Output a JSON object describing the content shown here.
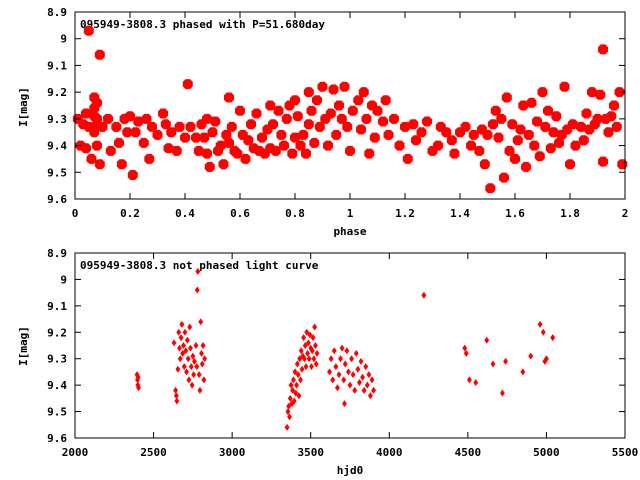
{
  "chart_data": [
    {
      "type": "scatter",
      "title": "095949-3808.3 phased with P=51.680day",
      "xlabel": "phase",
      "ylabel": "I[mag]",
      "xlim": [
        0,
        2
      ],
      "ylim": [
        8.9,
        9.6
      ],
      "y_inverted": true,
      "grid": false,
      "color": "#ff0000",
      "xticks": [
        "0",
        "0.2",
        "0.4",
        "0.6",
        "0.8",
        "1",
        "1.2",
        "1.4",
        "1.6",
        "1.8",
        "2"
      ],
      "yticks": [
        "8.9",
        "9",
        "9.1",
        "9.2",
        "9.3",
        "9.4",
        "9.5",
        "9.6"
      ],
      "points": [
        [
          0.01,
          9.3
        ],
        [
          0.02,
          9.4
        ],
        [
          0.03,
          9.32
        ],
        [
          0.04,
          9.28
        ],
        [
          0.04,
          9.41
        ],
        [
          0.05,
          8.97
        ],
        [
          0.05,
          9.33
        ],
        [
          0.06,
          9.45
        ],
        [
          0.07,
          9.22
        ],
        [
          0.07,
          9.26
        ],
        [
          0.07,
          9.29
        ],
        [
          0.07,
          9.33
        ],
        [
          0.07,
          9.35
        ],
        [
          0.08,
          9.24
        ],
        [
          0.08,
          9.3
        ],
        [
          0.08,
          9.4
        ],
        [
          0.09,
          9.06
        ],
        [
          0.09,
          9.47
        ],
        [
          0.1,
          9.33
        ],
        [
          0.12,
          9.3
        ],
        [
          0.13,
          9.42
        ],
        [
          0.15,
          9.33
        ],
        [
          0.16,
          9.39
        ],
        [
          0.17,
          9.47
        ],
        [
          0.18,
          9.3
        ],
        [
          0.19,
          9.35
        ],
        [
          0.2,
          9.29
        ],
        [
          0.21,
          9.51
        ],
        [
          0.22,
          9.35
        ],
        [
          0.23,
          9.31
        ],
        [
          0.25,
          9.39
        ],
        [
          0.26,
          9.3
        ],
        [
          0.27,
          9.45
        ],
        [
          0.28,
          9.33
        ],
        [
          0.3,
          9.36
        ],
        [
          0.32,
          9.28
        ],
        [
          0.33,
          9.32
        ],
        [
          0.34,
          9.41
        ],
        [
          0.35,
          9.35
        ],
        [
          0.37,
          9.42
        ],
        [
          0.38,
          9.33
        ],
        [
          0.4,
          9.37
        ],
        [
          0.41,
          9.17
        ],
        [
          0.42,
          9.33
        ],
        [
          0.44,
          9.37
        ],
        [
          0.45,
          9.42
        ],
        [
          0.46,
          9.32
        ],
        [
          0.47,
          9.37
        ],
        [
          0.48,
          9.43
        ],
        [
          0.48,
          9.3
        ],
        [
          0.49,
          9.48
        ],
        [
          0.5,
          9.35
        ],
        [
          0.51,
          9.31
        ],
        [
          0.52,
          9.42
        ],
        [
          0.53,
          9.4
        ],
        [
          0.54,
          9.47
        ],
        [
          0.55,
          9.36
        ],
        [
          0.56,
          9.22
        ],
        [
          0.56,
          9.39
        ],
        [
          0.57,
          9.33
        ],
        [
          0.58,
          9.42
        ],
        [
          0.59,
          9.43
        ],
        [
          0.6,
          9.27
        ],
        [
          0.61,
          9.36
        ],
        [
          0.62,
          9.45
        ],
        [
          0.63,
          9.38
        ],
        [
          0.64,
          9.32
        ],
        [
          0.65,
          9.41
        ],
        [
          0.66,
          9.28
        ],
        [
          0.67,
          9.42
        ],
        [
          0.68,
          9.37
        ],
        [
          0.69,
          9.43
        ],
        [
          0.7,
          9.34
        ],
        [
          0.71,
          9.25
        ],
        [
          0.71,
          9.41
        ],
        [
          0.72,
          9.32
        ],
        [
          0.73,
          9.42
        ],
        [
          0.74,
          9.27
        ],
        [
          0.75,
          9.36
        ],
        [
          0.76,
          9.4
        ],
        [
          0.77,
          9.3
        ],
        [
          0.78,
          9.25
        ],
        [
          0.79,
          9.43
        ],
        [
          0.8,
          9.23
        ],
        [
          0.8,
          9.37
        ],
        [
          0.81,
          9.29
        ],
        [
          0.82,
          9.4
        ],
        [
          0.83,
          9.36
        ],
        [
          0.84,
          9.43
        ],
        [
          0.85,
          9.2
        ],
        [
          0.85,
          9.32
        ],
        [
          0.86,
          9.27
        ],
        [
          0.87,
          9.39
        ],
        [
          0.88,
          9.23
        ],
        [
          0.89,
          9.33
        ],
        [
          0.9,
          9.18
        ],
        [
          0.91,
          9.3
        ],
        [
          0.92,
          9.4
        ],
        [
          0.93,
          9.28
        ],
        [
          0.94,
          9.19
        ],
        [
          0.95,
          9.36
        ],
        [
          0.96,
          9.25
        ],
        [
          0.97,
          9.3
        ],
        [
          0.98,
          9.18
        ],
        [
          0.99,
          9.33
        ],
        [
          1.0,
          9.42
        ],
        [
          1.01,
          9.27
        ],
        [
          1.03,
          9.23
        ],
        [
          1.04,
          9.34
        ],
        [
          1.05,
          9.2
        ],
        [
          1.06,
          9.3
        ],
        [
          1.07,
          9.43
        ],
        [
          1.08,
          9.25
        ],
        [
          1.09,
          9.37
        ],
        [
          1.1,
          9.27
        ],
        [
          1.12,
          9.31
        ],
        [
          1.13,
          9.23
        ],
        [
          1.14,
          9.36
        ],
        [
          1.16,
          9.3
        ],
        [
          1.18,
          9.4
        ],
        [
          1.2,
          9.33
        ],
        [
          1.21,
          9.45
        ],
        [
          1.23,
          9.32
        ],
        [
          1.24,
          9.38
        ],
        [
          1.26,
          9.35
        ],
        [
          1.28,
          9.31
        ],
        [
          1.3,
          9.42
        ],
        [
          1.32,
          9.4
        ],
        [
          1.33,
          9.33
        ],
        [
          1.35,
          9.35
        ],
        [
          1.37,
          9.38
        ],
        [
          1.38,
          9.43
        ],
        [
          1.4,
          9.35
        ],
        [
          1.42,
          9.33
        ],
        [
          1.44,
          9.4
        ],
        [
          1.45,
          9.36
        ],
        [
          1.47,
          9.42
        ],
        [
          1.48,
          9.34
        ],
        [
          1.49,
          9.47
        ],
        [
          1.5,
          9.36
        ],
        [
          1.51,
          9.56
        ],
        [
          1.52,
          9.32
        ],
        [
          1.53,
          9.27
        ],
        [
          1.54,
          9.37
        ],
        [
          1.55,
          9.3
        ],
        [
          1.56,
          9.52
        ],
        [
          1.57,
          9.22
        ],
        [
          1.58,
          9.42
        ],
        [
          1.59,
          9.32
        ],
        [
          1.6,
          9.45
        ],
        [
          1.61,
          9.38
        ],
        [
          1.62,
          9.34
        ],
        [
          1.63,
          9.25
        ],
        [
          1.64,
          9.48
        ],
        [
          1.65,
          9.36
        ],
        [
          1.66,
          9.24
        ],
        [
          1.67,
          9.4
        ],
        [
          1.68,
          9.31
        ],
        [
          1.69,
          9.44
        ],
        [
          1.7,
          9.2
        ],
        [
          1.71,
          9.33
        ],
        [
          1.72,
          9.27
        ],
        [
          1.73,
          9.41
        ],
        [
          1.74,
          9.35
        ],
        [
          1.75,
          9.29
        ],
        [
          1.76,
          9.39
        ],
        [
          1.77,
          9.36
        ],
        [
          1.78,
          9.18
        ],
        [
          1.79,
          9.34
        ],
        [
          1.8,
          9.47
        ],
        [
          1.81,
          9.32
        ],
        [
          1.82,
          9.4
        ],
        [
          1.84,
          9.33
        ],
        [
          1.85,
          9.38
        ],
        [
          1.86,
          9.28
        ],
        [
          1.87,
          9.34
        ],
        [
          1.88,
          9.2
        ],
        [
          1.89,
          9.32
        ],
        [
          1.9,
          9.3
        ],
        [
          1.91,
          9.21
        ],
        [
          1.92,
          9.04
        ],
        [
          1.92,
          9.46
        ],
        [
          1.93,
          9.3
        ],
        [
          1.94,
          9.35
        ],
        [
          1.95,
          9.29
        ],
        [
          1.96,
          9.25
        ],
        [
          1.97,
          9.33
        ],
        [
          1.98,
          9.2
        ],
        [
          1.99,
          9.47
        ]
      ]
    },
    {
      "type": "scatter",
      "title": "095949-3808.3 not phased light curve",
      "xlabel": "hjd0",
      "ylabel": "I[mag]",
      "xlim": [
        2000,
        5500
      ],
      "ylim": [
        8.9,
        9.6
      ],
      "y_inverted": true,
      "grid": false,
      "color": "#ff0000",
      "xticks": [
        "2000",
        "2500",
        "3000",
        "3500",
        "4000",
        "4500",
        "5000",
        "5500"
      ],
      "yticks": [
        "8.9",
        "9",
        "9.1",
        "9.2",
        "9.3",
        "9.4",
        "9.5",
        "9.6"
      ],
      "points": [
        [
          2395,
          9.36
        ],
        [
          2398,
          9.38
        ],
        [
          2400,
          9.4
        ],
        [
          2402,
          9.37
        ],
        [
          2405,
          9.41
        ],
        [
          2630,
          9.24
        ],
        [
          2640,
          9.42
        ],
        [
          2645,
          9.44
        ],
        [
          2648,
          9.46
        ],
        [
          2655,
          9.34
        ],
        [
          2660,
          9.2
        ],
        [
          2665,
          9.26
        ],
        [
          2670,
          9.3
        ],
        [
          2675,
          9.22
        ],
        [
          2680,
          9.17
        ],
        [
          2685,
          9.28
        ],
        [
          2690,
          9.25
        ],
        [
          2695,
          9.33
        ],
        [
          2700,
          9.2
        ],
        [
          2705,
          9.27
        ],
        [
          2710,
          9.35
        ],
        [
          2715,
          9.23
        ],
        [
          2720,
          9.3
        ],
        [
          2725,
          9.38
        ],
        [
          2730,
          9.18
        ],
        [
          2735,
          9.26
        ],
        [
          2740,
          9.33
        ],
        [
          2745,
          9.4
        ],
        [
          2750,
          9.29
        ],
        [
          2755,
          9.36
        ],
        [
          2760,
          9.31
        ],
        [
          2770,
          9.25
        ],
        [
          2775,
          9.33
        ],
        [
          2778,
          9.04
        ],
        [
          2782,
          8.97
        ],
        [
          2790,
          9.36
        ],
        [
          2795,
          9.42
        ],
        [
          2800,
          9.16
        ],
        [
          2805,
          9.28
        ],
        [
          2810,
          9.32
        ],
        [
          2815,
          9.25
        ],
        [
          2820,
          9.38
        ],
        [
          2825,
          9.3
        ],
        [
          3350,
          9.56
        ],
        [
          3355,
          9.5
        ],
        [
          3360,
          9.48
        ],
        [
          3365,
          9.52
        ],
        [
          3370,
          9.45
        ],
        [
          3375,
          9.4
        ],
        [
          3380,
          9.47
        ],
        [
          3385,
          9.42
        ],
        [
          3390,
          9.38
        ],
        [
          3395,
          9.46
        ],
        [
          3400,
          9.35
        ],
        [
          3405,
          9.43
        ],
        [
          3410,
          9.4
        ],
        [
          3415,
          9.32
        ],
        [
          3420,
          9.36
        ],
        [
          3425,
          9.44
        ],
        [
          3430,
          9.3
        ],
        [
          3435,
          9.38
        ],
        [
          3440,
          9.27
        ],
        [
          3445,
          9.34
        ],
        [
          3450,
          9.29
        ],
        [
          3455,
          9.22
        ],
        [
          3460,
          9.3
        ],
        [
          3465,
          9.25
        ],
        [
          3470,
          9.33
        ],
        [
          3475,
          9.2
        ],
        [
          3480,
          9.28
        ],
        [
          3485,
          9.24
        ],
        [
          3490,
          9.3
        ],
        [
          3495,
          9.21
        ],
        [
          3500,
          9.26
        ],
        [
          3505,
          9.33
        ],
        [
          3510,
          9.27
        ],
        [
          3515,
          9.22
        ],
        [
          3520,
          9.3
        ],
        [
          3525,
          9.18
        ],
        [
          3530,
          9.25
        ],
        [
          3535,
          9.32
        ],
        [
          3540,
          9.28
        ],
        [
          3620,
          9.35
        ],
        [
          3630,
          9.3
        ],
        [
          3640,
          9.38
        ],
        [
          3650,
          9.27
        ],
        [
          3660,
          9.33
        ],
        [
          3670,
          9.41
        ],
        [
          3680,
          9.36
        ],
        [
          3690,
          9.3
        ],
        [
          3700,
          9.26
        ],
        [
          3710,
          9.38
        ],
        [
          3715,
          9.47
        ],
        [
          3720,
          9.32
        ],
        [
          3730,
          9.27
        ],
        [
          3740,
          9.35
        ],
        [
          3750,
          9.4
        ],
        [
          3760,
          9.3
        ],
        [
          3770,
          9.36
        ],
        [
          3780,
          9.42
        ],
        [
          3790,
          9.28
        ],
        [
          3800,
          9.34
        ],
        [
          3810,
          9.39
        ],
        [
          3820,
          9.31
        ],
        [
          3830,
          9.37
        ],
        [
          3840,
          9.42
        ],
        [
          3850,
          9.33
        ],
        [
          3860,
          9.4
        ],
        [
          3870,
          9.36
        ],
        [
          3880,
          9.44
        ],
        [
          3890,
          9.38
        ],
        [
          3900,
          9.42
        ],
        [
          4220,
          9.06
        ],
        [
          4480,
          9.26
        ],
        [
          4490,
          9.28
        ],
        [
          4510,
          9.38
        ],
        [
          4550,
          9.39
        ],
        [
          4620,
          9.23
        ],
        [
          4660,
          9.32
        ],
        [
          4720,
          9.43
        ],
        [
          4740,
          9.31
        ],
        [
          4850,
          9.35
        ],
        [
          4900,
          9.29
        ],
        [
          4960,
          9.17
        ],
        [
          4980,
          9.2
        ],
        [
          4990,
          9.31
        ],
        [
          5000,
          9.3
        ],
        [
          5040,
          9.22
        ]
      ]
    }
  ]
}
